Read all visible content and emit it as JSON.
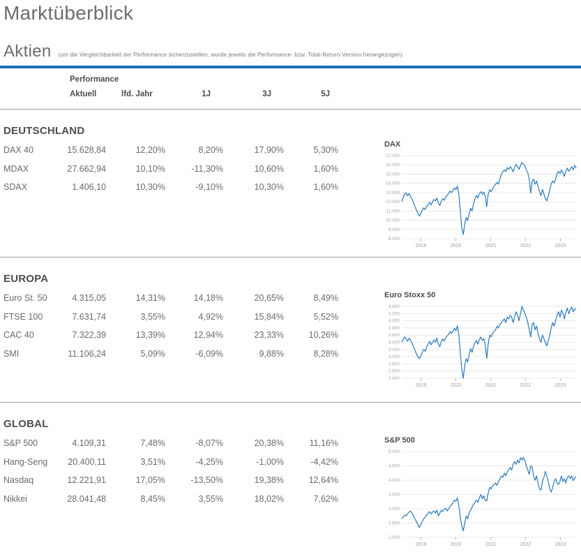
{
  "page": {
    "title": "Marktüberblick",
    "subtitle": "Aktien",
    "subtitle_note": "(um die Vergleichbarkeit der Performance sicherzustellen, wurde jeweils die Performance- bzw. Total-Return-Version herangezogen)"
  },
  "colors": {
    "accent_blue": "#1a70b8",
    "chart_line": "#2878be",
    "heading_gray": "#4b4c4e",
    "text_gray": "#696a6d",
    "gridline": "#e2e2e2"
  },
  "table": {
    "group_header": "Performance",
    "columns": [
      "Aktuell",
      "lfd. Jahr",
      "1J",
      "3J",
      "5J"
    ],
    "sections": [
      {
        "name": "DEUTSCHLAND",
        "rows": [
          {
            "label": "DAX 40",
            "values": [
              "15.628,84",
              "12,20%",
              "8,20%",
              "17,90%",
              "5,30%"
            ]
          },
          {
            "label": "MDAX",
            "values": [
              "27.662,94",
              "10,10%",
              "-11,30%",
              "10,60%",
              "1,60%"
            ]
          },
          {
            "label": "SDAX",
            "values": [
              "1.406,10",
              "10,30%",
              "-9,10%",
              "10,30%",
              "1,60%"
            ]
          }
        ]
      },
      {
        "name": "EUROPA",
        "rows": [
          {
            "label": "Euro St. 50",
            "values": [
              "4.315,05",
              "14,31%",
              "14,18%",
              "20,65%",
              "8,49%"
            ]
          },
          {
            "label": "FTSE 100",
            "values": [
              "7.631,74",
              "3,55%",
              "4,92%",
              "15,84%",
              "5,52%"
            ]
          },
          {
            "label": "CAC 40",
            "values": [
              "7.322,39",
              "13,39%",
              "12,94%",
              "23,33%",
              "10,26%"
            ]
          },
          {
            "label": "SMI",
            "values": [
              "11.106,24",
              "5,09%",
              "-6,09%",
              "9,88%",
              "8,28%"
            ]
          }
        ]
      },
      {
        "name": "GLOBAL",
        "rows": [
          {
            "label": "S&P 500",
            "values": [
              "4.109,31",
              "7,48%",
              "-8,07%",
              "20,38%",
              "11,16%"
            ]
          },
          {
            "label": "Hang-Seng",
            "values": [
              "20.400,11",
              "3,51%",
              "-4,25%",
              "-1,00%",
              "-4,42%"
            ]
          },
          {
            "label": "Nasdaq",
            "values": [
              "12.221,91",
              "17,05%",
              "-13,50%",
              "19,38%",
              "12,64%"
            ]
          },
          {
            "label": "Nikkei",
            "values": [
              "28.041,48",
              "8,45%",
              "3,55%",
              "18,02%",
              "7,62%"
            ]
          }
        ]
      }
    ]
  },
  "chart_data": [
    {
      "type": "line",
      "title": "DAX",
      "xlabel": "",
      "ylabel": "",
      "x_start": 2018.45,
      "x_end": 2023.45,
      "x_ticks": [
        2019,
        2020,
        2021,
        2022,
        2023
      ],
      "ylim": [
        8000,
        17000
      ],
      "ystep": 1000,
      "grid": true,
      "values": [
        12000,
        12450,
        12850,
        12950,
        12650,
        12900,
        12550,
        12300,
        11900,
        11500,
        11100,
        10800,
        10450,
        10700,
        11100,
        11350,
        11150,
        11500,
        11700,
        11950,
        11650,
        12000,
        12250,
        12100,
        12400,
        11850,
        11600,
        12050,
        12350,
        12150,
        12500,
        12700,
        12900,
        13150,
        13000,
        13250,
        13500,
        13300,
        13700,
        12800,
        11000,
        9200,
        8450,
        9600,
        10300,
        9950,
        10700,
        11300,
        11000,
        11800,
        12300,
        12700,
        12400,
        12900,
        13100,
        12800,
        13050,
        12600,
        11450,
        12800,
        13300,
        13100,
        13400,
        13700,
        13900,
        14100,
        13900,
        14500,
        15000,
        15250,
        15450,
        15250,
        15700,
        15500,
        15800,
        15600,
        15250,
        15700,
        16050,
        15850,
        15500,
        15900,
        16250,
        16100,
        15900,
        15450,
        15150,
        14450,
        12950,
        14200,
        14450,
        13900,
        14250,
        13650,
        13100,
        12650,
        13350,
        12850,
        12350,
        12100,
        12650,
        13250,
        13950,
        14250,
        14050,
        14450,
        15100,
        15300,
        15050,
        15450,
        15150,
        14750,
        15350,
        15650,
        15300,
        15550,
        15800,
        15450,
        15950,
        15629
      ]
    },
    {
      "type": "line",
      "title": "Euro Stoxx 50",
      "xlabel": "",
      "ylabel": "",
      "x_start": 2018.45,
      "x_end": 2023.45,
      "x_ticks": [
        2019,
        2020,
        2021,
        2022,
        2023
      ],
      "ylim": [
        2400,
        4400
      ],
      "ystep": 200,
      "grid": true,
      "values": [
        3400,
        3480,
        3550,
        3500,
        3430,
        3510,
        3460,
        3380,
        3280,
        3180,
        3080,
        3000,
        2950,
        3020,
        3120,
        3200,
        3150,
        3270,
        3350,
        3430,
        3330,
        3400,
        3470,
        3400,
        3520,
        3350,
        3280,
        3420,
        3500,
        3430,
        3520,
        3580,
        3620,
        3700,
        3650,
        3720,
        3790,
        3720,
        3860,
        3600,
        3100,
        2650,
        2400,
        2750,
        2950,
        2850,
        3050,
        3230,
        3120,
        3300,
        3380,
        3450,
        3350,
        3480,
        3550,
        3450,
        3500,
        3350,
        2950,
        3350,
        3600,
        3550,
        3650,
        3700,
        3750,
        3850,
        3800,
        3900,
        3950,
        4000,
        4050,
        3950,
        4100,
        4050,
        4150,
        4100,
        3950,
        4100,
        4250,
        4150,
        4000,
        4200,
        4400,
        4300,
        4200,
        4100,
        3950,
        3750,
        3550,
        3900,
        3950,
        3750,
        3850,
        3650,
        3500,
        3400,
        3600,
        3500,
        3400,
        3300,
        3450,
        3600,
        3800,
        3950,
        3850,
        4000,
        4150,
        4250,
        4100,
        4300,
        4200,
        4050,
        4250,
        4350,
        4200,
        4300,
        4380,
        4250,
        4330,
        4315
      ]
    },
    {
      "type": "line",
      "title": "S&P 500",
      "xlabel": "",
      "ylabel": "",
      "x_start": 2018.45,
      "x_end": 2023.45,
      "x_ticks": [
        2019,
        2020,
        2021,
        2022,
        2023
      ],
      "ylim": [
        2000,
        5000
      ],
      "ystep": 500,
      "grid": true,
      "values": [
        2650,
        2720,
        2780,
        2750,
        2820,
        2880,
        2920,
        2850,
        2750,
        2650,
        2550,
        2450,
        2350,
        2450,
        2550,
        2650,
        2700,
        2780,
        2850,
        2900,
        2820,
        2880,
        2930,
        2850,
        2950,
        2750,
        2850,
        2950,
        2900,
        2980,
        3020,
        2920,
        3000,
        3080,
        3130,
        3230,
        3300,
        3260,
        3380,
        3100,
        2700,
        2400,
        2230,
        2500,
        2750,
        2650,
        2850,
        2950,
        3050,
        3150,
        3220,
        3300,
        3230,
        3380,
        3500,
        3350,
        3450,
        3300,
        3270,
        3550,
        3750,
        3700,
        3800,
        3850,
        3900,
        3820,
        3950,
        4050,
        4150,
        4100,
        4250,
        4150,
        4300,
        4350,
        4450,
        4350,
        4550,
        4650,
        4550,
        4700,
        4600,
        4780,
        4700,
        4800,
        4680,
        4500,
        4350,
        4200,
        4500,
        4450,
        4150,
        4000,
        4150,
        3900,
        3700,
        3650,
        3950,
        4100,
        4300,
        4150,
        3950,
        3700,
        3580,
        3750,
        3950,
        4050,
        3900,
        3850,
        3950,
        4150,
        3950,
        4050,
        3900,
        4100,
        4150,
        4050,
        4150,
        3980,
        4080,
        4109
      ]
    }
  ]
}
